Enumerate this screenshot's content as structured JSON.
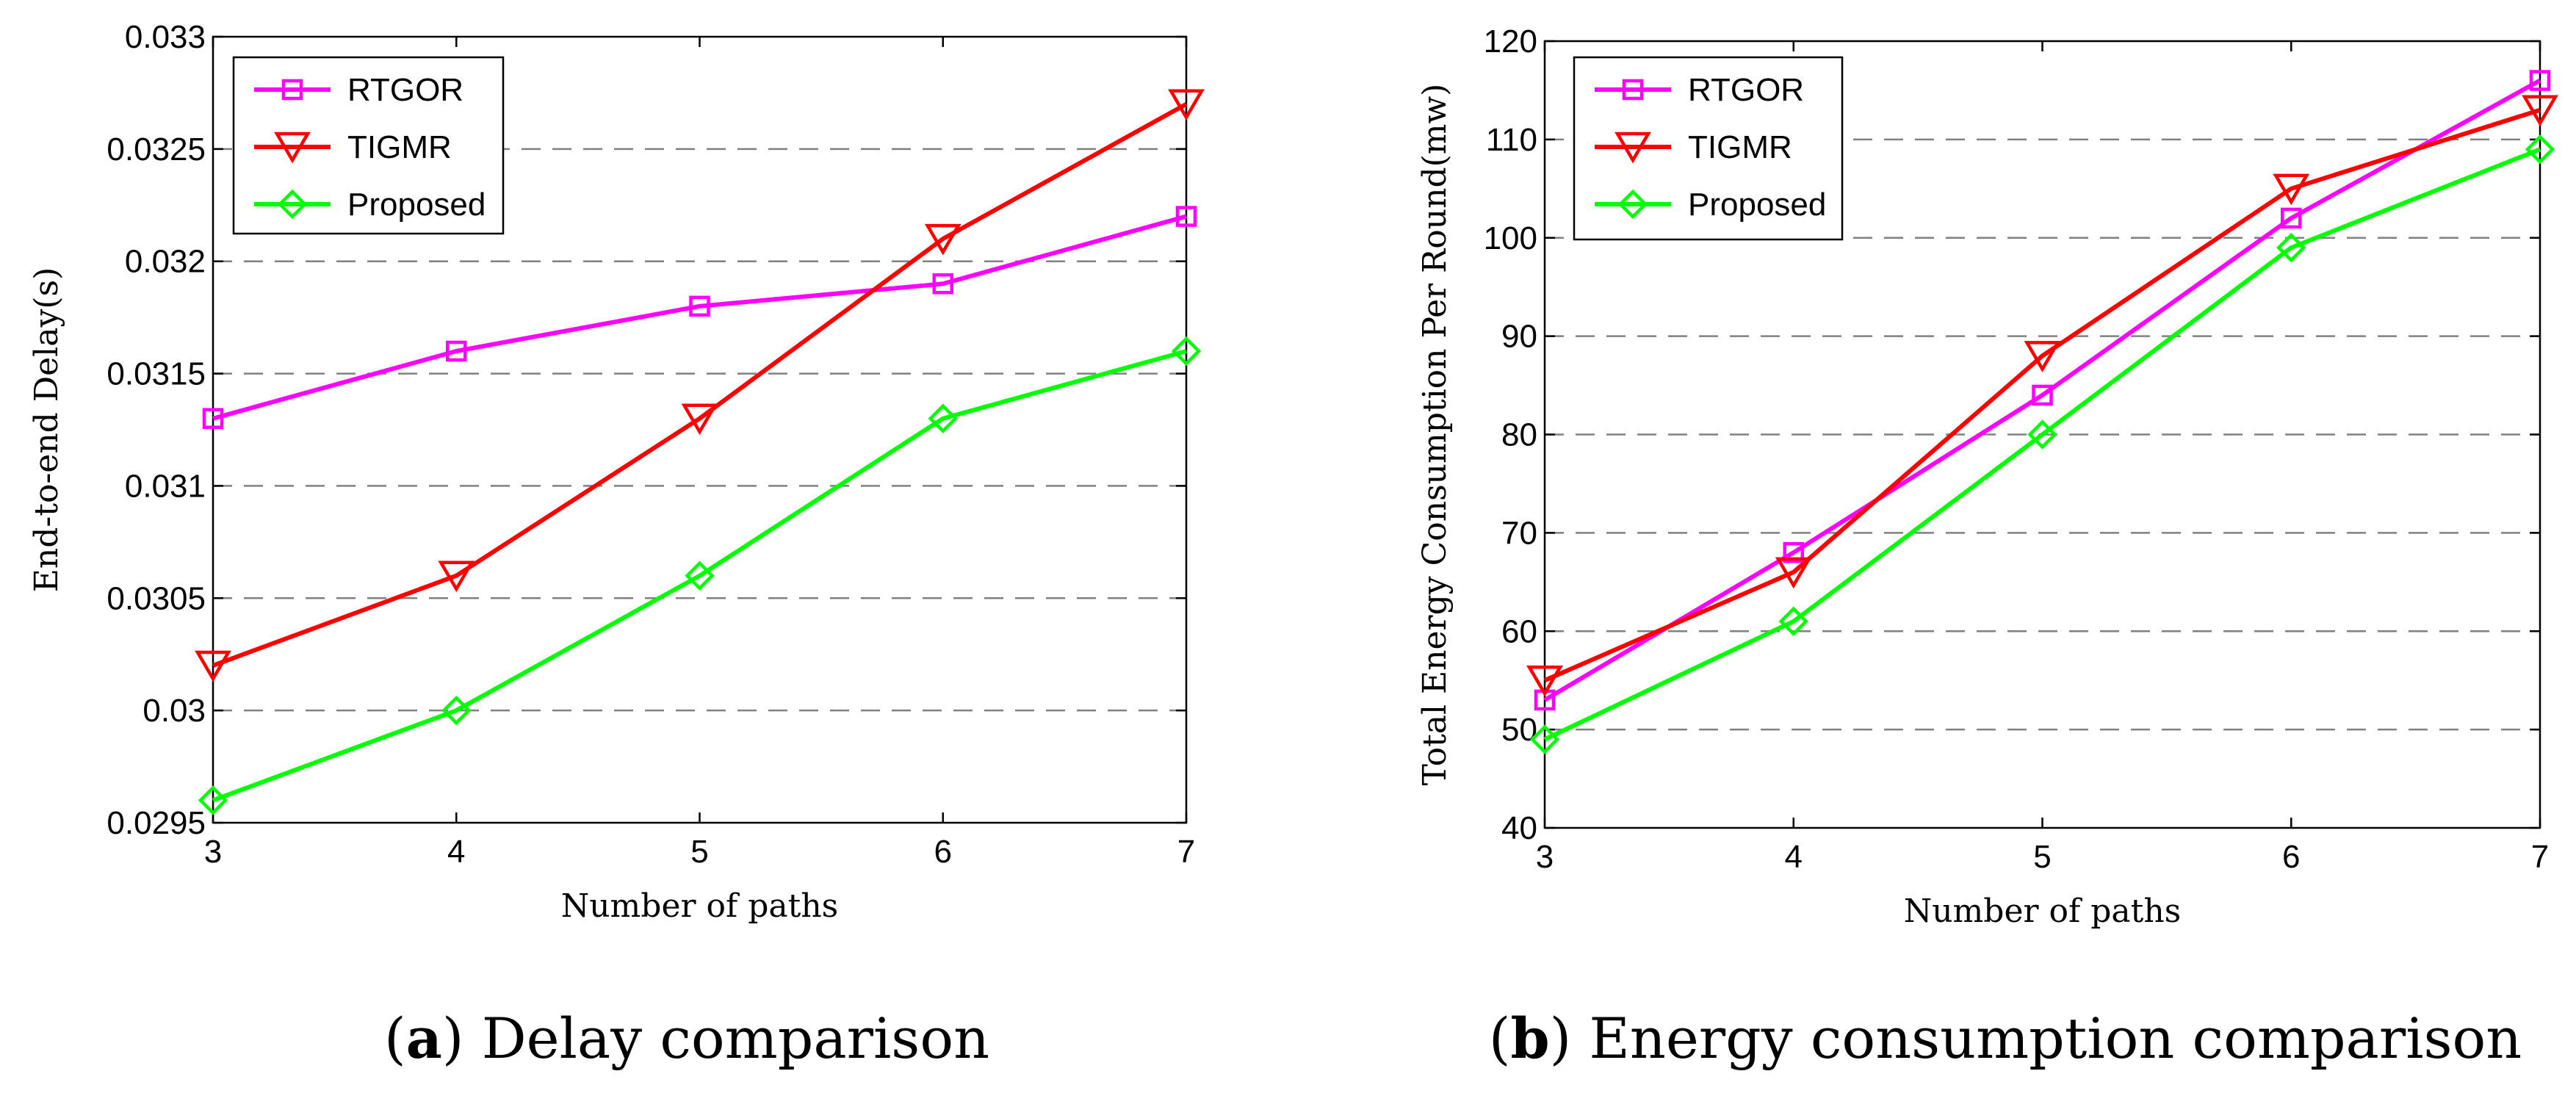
{
  "chart_data": [
    {
      "type": "line",
      "panel": "a",
      "x": [
        3,
        4,
        5,
        6,
        7
      ],
      "xlabel": "Number of paths",
      "ylabel": "End-to-end Delay(s)",
      "xlim": [
        3,
        7
      ],
      "ylim": [
        0.0295,
        0.033
      ],
      "xticks": [
        "3",
        "4",
        "5",
        "6",
        "7"
      ],
      "yticks": [
        "0.0295",
        "0.03",
        "0.0305",
        "0.031",
        "0.0315",
        "0.032",
        "0.0325",
        "0.033"
      ],
      "ytick_values": [
        0.0295,
        0.03,
        0.0305,
        0.031,
        0.0315,
        0.032,
        0.0325,
        0.033
      ],
      "grid": "horizontal dashed",
      "legend_position": "top-left",
      "series": [
        {
          "name": "RTGOR",
          "color": "#ff00ff",
          "marker": "square",
          "values": [
            0.0313,
            0.0316,
            0.0318,
            0.0319,
            0.0322
          ]
        },
        {
          "name": "TIGMR",
          "color": "#ff0000",
          "marker": "triangle-down",
          "values": [
            0.0302,
            0.0306,
            0.0313,
            0.0321,
            0.0327
          ]
        },
        {
          "name": "Proposed",
          "color": "#00ff00",
          "marker": "diamond",
          "values": [
            0.0296,
            0.03,
            0.0306,
            0.0313,
            0.0316
          ]
        }
      ]
    },
    {
      "type": "line",
      "panel": "b",
      "x": [
        3,
        4,
        5,
        6,
        7
      ],
      "xlabel": "Number of paths",
      "ylabel": "Total Energy Consumption Per Round(mw)",
      "xlim": [
        3,
        7
      ],
      "ylim": [
        40,
        120
      ],
      "xticks": [
        "3",
        "4",
        "5",
        "6",
        "7"
      ],
      "yticks": [
        "40",
        "50",
        "60",
        "70",
        "80",
        "90",
        "100",
        "110",
        "120"
      ],
      "ytick_values": [
        40,
        50,
        60,
        70,
        80,
        90,
        100,
        110,
        120
      ],
      "grid": "horizontal dashed",
      "legend_position": "top-left",
      "series": [
        {
          "name": "RTGOR",
          "color": "#ff00ff",
          "marker": "square",
          "values": [
            53,
            68,
            84,
            102,
            116
          ]
        },
        {
          "name": "TIGMR",
          "color": "#ff0000",
          "marker": "triangle-down",
          "values": [
            55,
            66,
            88,
            105,
            113
          ]
        },
        {
          "name": "Proposed",
          "color": "#00ff00",
          "marker": "diamond",
          "values": [
            49,
            61,
            80,
            99,
            109
          ]
        }
      ]
    }
  ],
  "captions": [
    {
      "letter": "a",
      "text": " Delay comparison"
    },
    {
      "letter": "b",
      "text": " Energy consumption comparison"
    }
  ]
}
